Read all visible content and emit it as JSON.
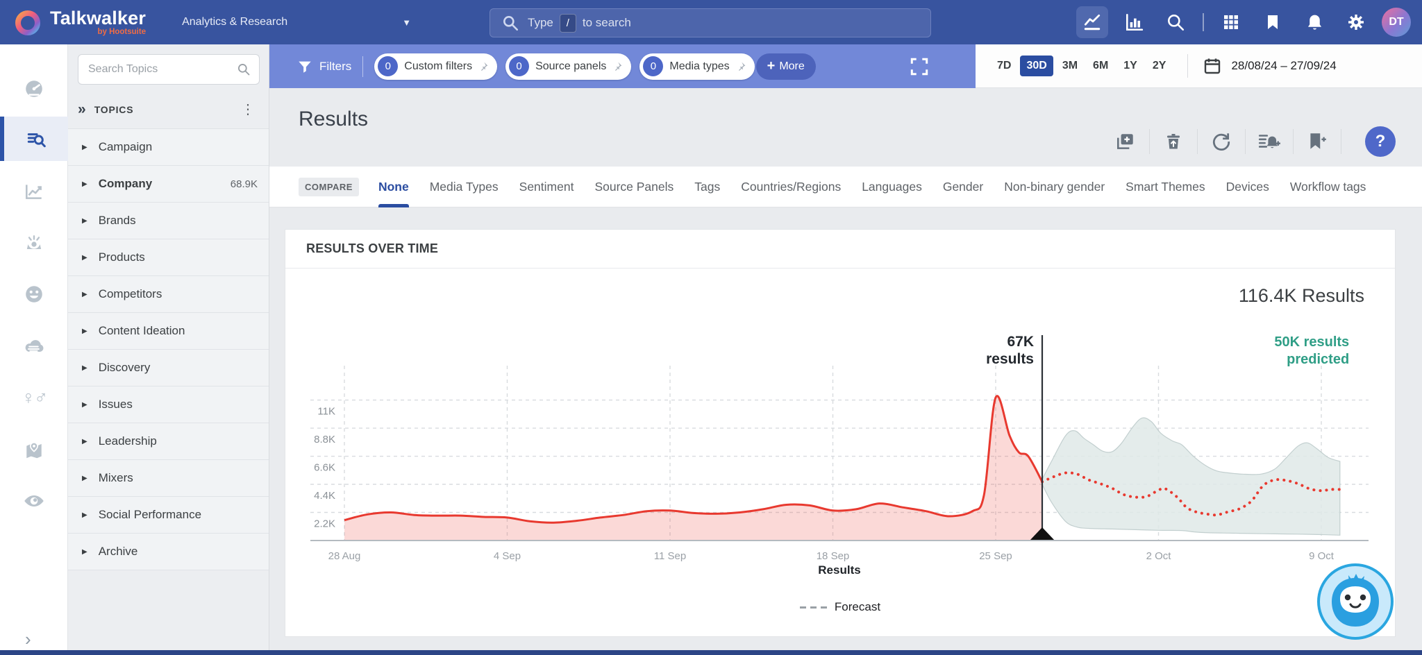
{
  "colors": {
    "navy": "#38549f",
    "periwinkle": "#7288d8",
    "accent": "#2b4da1",
    "red": "#e8392f",
    "red_fill": "rgba(237,82,73,0.22)",
    "teal": "#2f9e86",
    "band_fill": "#dfe9e8",
    "band_stroke": "#c2cfcf"
  },
  "topnav": {
    "logo_title": "Talkwalker",
    "logo_subtitle": "by Hootsuite",
    "workspace_label": "Analytics & Research",
    "search_placeholder_pre": "Type",
    "search_key": "/",
    "search_placeholder_post": "to search",
    "avatar_initials": "DT"
  },
  "filter_bar": {
    "filters_label": "Filters",
    "chips": [
      {
        "count": "0",
        "label": "Custom filters"
      },
      {
        "count": "0",
        "label": "Source panels"
      },
      {
        "count": "0",
        "label": "Media types"
      }
    ],
    "more_label": "More",
    "ranges": [
      "7D",
      "30D",
      "3M",
      "6M",
      "1Y",
      "2Y"
    ],
    "active_range": "30D",
    "date_range": "28/08/24 – 27/09/24"
  },
  "sidebar": {
    "search_placeholder": "Search Topics",
    "section_title": "TOPICS",
    "items": [
      {
        "label": "Campaign"
      },
      {
        "label": "Company",
        "count": "68.9K",
        "bold": true
      },
      {
        "label": "Brands"
      },
      {
        "label": "Products"
      },
      {
        "label": "Competitors"
      },
      {
        "label": "Content Ideation"
      },
      {
        "label": "Discovery"
      },
      {
        "label": "Issues"
      },
      {
        "label": "Leadership"
      },
      {
        "label": "Mixers"
      },
      {
        "label": "Social Performance"
      },
      {
        "label": "Archive"
      }
    ]
  },
  "results": {
    "title": "Results",
    "compare_label": "COMPARE",
    "help_label": "?",
    "tabs": [
      "None",
      "Media Types",
      "Sentiment",
      "Source Panels",
      "Tags",
      "Countries/Regions",
      "Languages",
      "Gender",
      "Non-binary gender",
      "Smart Themes",
      "Devices",
      "Workflow tags"
    ],
    "active_tab": "None"
  },
  "chart_card": {
    "title": "RESULTS OVER TIME",
    "total_label": "116.4K Results",
    "legend_label": "Forecast"
  },
  "chart_data": {
    "type": "area",
    "title": "RESULTS OVER TIME",
    "total_results": "116.4K Results",
    "xlabel": "",
    "ylabel": "",
    "xaxis_title": "Results",
    "x_unit": "days from 28 Aug 2024",
    "y_unit": "results (thousands)",
    "ylim": [
      0,
      12.4
    ],
    "grid": true,
    "legend_position": "bottom-center",
    "xticks": [
      {
        "d": 0,
        "label": "28 Aug"
      },
      {
        "d": 7,
        "label": "4 Sep"
      },
      {
        "d": 14,
        "label": "11 Sep"
      },
      {
        "d": 21,
        "label": "18 Sep"
      },
      {
        "d": 28,
        "label": "25 Sep"
      },
      {
        "d": 35,
        "label": "2 Oct"
      },
      {
        "d": 42,
        "label": "9 Oct"
      }
    ],
    "yticks": [
      {
        "v": 2.2,
        "label": "2.2K"
      },
      {
        "v": 4.4,
        "label": "4.4K"
      },
      {
        "v": 6.6,
        "label": "6.6K"
      },
      {
        "v": 8.8,
        "label": "8.8K"
      },
      {
        "v": 11,
        "label": "11K"
      }
    ],
    "now_line_day": 30,
    "annotations": [
      {
        "lines": [
          "67K",
          "results"
        ],
        "x_day": 30,
        "dx": -12,
        "class": "ann-dark"
      },
      {
        "lines": [
          "50K results",
          "predicted"
        ],
        "x_day": 43.2,
        "dx": 0,
        "class": "ann-teal"
      }
    ],
    "legend": [
      {
        "label": "Forecast",
        "style": "dashed"
      }
    ],
    "series": [
      {
        "name": "Results",
        "style": "solid-area",
        "color": "#e8392f",
        "points": [
          [
            0,
            1.6
          ],
          [
            1,
            2.05
          ],
          [
            2,
            2.2
          ],
          [
            3,
            2.0
          ],
          [
            4,
            1.95
          ],
          [
            5,
            1.95
          ],
          [
            6,
            1.85
          ],
          [
            7,
            1.8
          ],
          [
            8,
            1.5
          ],
          [
            9,
            1.4
          ],
          [
            10,
            1.55
          ],
          [
            11,
            1.8
          ],
          [
            12,
            2.0
          ],
          [
            13,
            2.3
          ],
          [
            14,
            2.35
          ],
          [
            15,
            2.15
          ],
          [
            16,
            2.1
          ],
          [
            17,
            2.2
          ],
          [
            18,
            2.45
          ],
          [
            19,
            2.8
          ],
          [
            20,
            2.75
          ],
          [
            21,
            2.35
          ],
          [
            22,
            2.45
          ],
          [
            23,
            2.9
          ],
          [
            24,
            2.6
          ],
          [
            25,
            2.3
          ],
          [
            26,
            1.9
          ],
          [
            27,
            2.3
          ],
          [
            27.5,
            3.6
          ],
          [
            28,
            11.2
          ],
          [
            28.6,
            8.2
          ],
          [
            29,
            6.9
          ],
          [
            29.4,
            6.6
          ],
          [
            30,
            4.6
          ]
        ]
      },
      {
        "name": "Forecast",
        "style": "dotted",
        "color": "#e8392f",
        "points": [
          [
            30,
            4.6
          ],
          [
            30.5,
            5.0
          ],
          [
            31,
            5.3
          ],
          [
            31.5,
            5.2
          ],
          [
            32,
            4.75
          ],
          [
            32.5,
            4.45
          ],
          [
            33,
            4.1
          ],
          [
            33.5,
            3.6
          ],
          [
            34,
            3.4
          ],
          [
            34.5,
            3.45
          ],
          [
            35,
            3.95
          ],
          [
            35.3,
            4.05
          ],
          [
            35.8,
            3.4
          ],
          [
            36.2,
            2.6
          ],
          [
            36.6,
            2.25
          ],
          [
            37,
            2.1
          ],
          [
            37.5,
            2.0
          ],
          [
            38,
            2.25
          ],
          [
            38.5,
            2.5
          ],
          [
            39,
            3.1
          ],
          [
            39.5,
            4.3
          ],
          [
            40,
            4.75
          ],
          [
            40.5,
            4.7
          ],
          [
            41,
            4.45
          ],
          [
            41.5,
            4.05
          ],
          [
            42,
            3.9
          ],
          [
            42.4,
            4.0
          ],
          [
            42.8,
            4.0
          ]
        ]
      }
    ],
    "forecast_band": {
      "fill": "#dfe9e8",
      "stroke": "#c2cfcf",
      "upper": [
        [
          30,
          4.8
        ],
        [
          30.4,
          6.2
        ],
        [
          31,
          8.2
        ],
        [
          31.4,
          8.6
        ],
        [
          31.8,
          8.0
        ],
        [
          32.2,
          7.5
        ],
        [
          32.6,
          7.0
        ],
        [
          33,
          6.95
        ],
        [
          33.4,
          7.6
        ],
        [
          33.9,
          8.9
        ],
        [
          34.3,
          9.6
        ],
        [
          34.7,
          9.3
        ],
        [
          35.1,
          8.4
        ],
        [
          35.6,
          7.8
        ],
        [
          36,
          7.5
        ],
        [
          36.5,
          6.6
        ],
        [
          37,
          5.9
        ],
        [
          37.5,
          5.45
        ],
        [
          38,
          5.3
        ],
        [
          38.6,
          5.2
        ],
        [
          39.4,
          5.2
        ],
        [
          40,
          5.6
        ],
        [
          40.5,
          6.5
        ],
        [
          41,
          7.4
        ],
        [
          41.4,
          7.65
        ],
        [
          41.8,
          7.2
        ],
        [
          42.3,
          6.5
        ],
        [
          42.8,
          6.2
        ]
      ],
      "lower": [
        [
          30,
          4.4
        ],
        [
          30.4,
          3.0
        ],
        [
          31,
          1.5
        ],
        [
          31.5,
          1.05
        ],
        [
          32,
          0.95
        ],
        [
          33,
          0.9
        ],
        [
          34,
          0.85
        ],
        [
          35,
          0.8
        ],
        [
          36,
          0.78
        ],
        [
          36.5,
          0.68
        ],
        [
          37,
          0.62
        ],
        [
          38,
          0.58
        ],
        [
          39,
          0.55
        ],
        [
          40,
          0.52
        ],
        [
          41,
          0.5
        ],
        [
          42,
          0.46
        ],
        [
          42.8,
          0.42
        ]
      ]
    }
  }
}
